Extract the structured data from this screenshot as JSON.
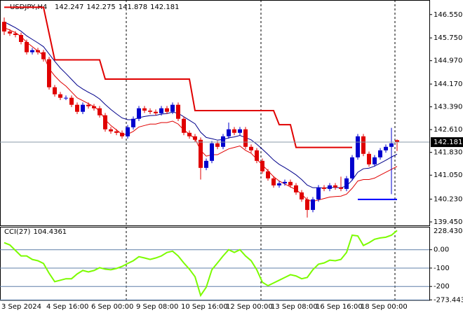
{
  "chart_data": [
    {
      "type": "candlestick",
      "title": "USDJPY,H4",
      "categories": [
        "3 Sep 2024",
        null,
        null,
        null,
        null,
        null,
        null,
        null,
        "4 Sep 16:00",
        null,
        null,
        null,
        null,
        null,
        null,
        null,
        "6 Sep 00:00",
        null,
        null,
        null,
        null,
        null,
        null,
        null,
        "9 Sep 08:00",
        null,
        null,
        null,
        null,
        null,
        null,
        null,
        "10 Sep 16:00",
        null,
        null,
        null,
        null,
        null,
        null,
        null,
        "12 Sep 00:00",
        null,
        null,
        null,
        null,
        null,
        null,
        null,
        "13 Sep 08:00",
        null,
        null,
        null,
        null,
        null,
        null,
        null,
        "16 Sep 16:00",
        null,
        null,
        null,
        null,
        null,
        null,
        null,
        "18 Sep 00:00",
        null,
        null,
        null,
        null,
        null,
        null
      ],
      "open": [
        146.3,
        145.97,
        145.9,
        145.85,
        145.61,
        145.26,
        145.33,
        145.26,
        145.02,
        144.06,
        143.82,
        143.7,
        143.7,
        143.46,
        143.22,
        143.46,
        143.41,
        143.34,
        143.1,
        142.62,
        142.55,
        142.5,
        142.38,
        142.69,
        142.98,
        143.34,
        143.26,
        143.22,
        143.17,
        143.34,
        143.22,
        143.46,
        142.98,
        142.5,
        142.38,
        142.26,
        141.3,
        141.54,
        142.14,
        142.02,
        142.38,
        142.62,
        142.5,
        142.62,
        142.02,
        141.9,
        141.54,
        141.18,
        140.94,
        140.7,
        140.77,
        140.82,
        140.7,
        140.46,
        140.22,
        139.86,
        140.22,
        140.63,
        140.58,
        140.7,
        140.63,
        140.58,
        140.94,
        141.66,
        142.38,
        141.78,
        141.42,
        141.66,
        141.9,
        142.02,
        142.247
      ],
      "high": [
        146.45,
        146.05,
        145.98,
        145.93,
        145.69,
        145.41,
        145.41,
        145.34,
        145.1,
        144.14,
        143.9,
        143.78,
        143.78,
        143.54,
        143.54,
        143.54,
        143.49,
        143.42,
        143.18,
        142.7,
        142.63,
        142.58,
        142.77,
        143.06,
        143.42,
        143.42,
        143.34,
        143.3,
        143.42,
        143.42,
        143.54,
        143.54,
        143.06,
        142.58,
        142.46,
        142.34,
        141.62,
        142.22,
        142.22,
        142.46,
        142.85,
        142.7,
        142.7,
        142.7,
        142.1,
        141.98,
        141.62,
        141.26,
        141.02,
        140.85,
        140.9,
        140.9,
        140.78,
        140.54,
        140.3,
        140.3,
        140.71,
        140.71,
        140.78,
        140.78,
        141.0,
        141.02,
        141.74,
        142.46,
        142.46,
        141.86,
        141.74,
        141.98,
        142.1,
        142.67,
        142.275
      ],
      "low": [
        145.85,
        145.82,
        145.77,
        145.53,
        145.18,
        145.18,
        145.18,
        144.94,
        143.98,
        143.74,
        143.62,
        143.62,
        143.38,
        143.14,
        143.14,
        143.33,
        143.26,
        143.02,
        142.54,
        142.47,
        142.42,
        142.3,
        142.3,
        142.61,
        142.9,
        143.18,
        143.14,
        143.09,
        143.09,
        143.14,
        143.14,
        142.9,
        142.42,
        142.3,
        142.18,
        140.9,
        141.22,
        141.46,
        141.94,
        141.94,
        142.3,
        142.42,
        142.42,
        141.94,
        141.82,
        141.46,
        141.1,
        140.86,
        140.62,
        140.62,
        140.69,
        140.62,
        140.38,
        140.14,
        139.6,
        139.78,
        140.14,
        140.5,
        140.5,
        140.55,
        140.5,
        140.5,
        140.86,
        141.58,
        141.7,
        141.34,
        141.34,
        141.58,
        141.82,
        140.4,
        141.878
      ],
      "close": [
        145.97,
        145.9,
        145.85,
        145.61,
        145.26,
        145.33,
        145.26,
        145.02,
        144.06,
        143.82,
        143.7,
        143.7,
        143.46,
        143.22,
        143.46,
        143.41,
        143.34,
        143.1,
        142.62,
        142.55,
        142.5,
        142.38,
        142.69,
        142.98,
        143.34,
        143.26,
        143.22,
        143.17,
        143.34,
        143.22,
        143.46,
        142.98,
        142.5,
        142.38,
        142.26,
        141.3,
        141.54,
        142.14,
        142.02,
        142.38,
        142.62,
        142.5,
        142.62,
        142.02,
        141.9,
        141.54,
        141.18,
        140.94,
        140.7,
        140.77,
        140.82,
        140.7,
        140.46,
        140.22,
        139.86,
        140.22,
        140.63,
        140.58,
        140.7,
        140.63,
        140.58,
        140.94,
        141.66,
        142.38,
        141.78,
        141.42,
        141.66,
        141.9,
        142.02,
        142.14,
        142.181
      ],
      "bull_color": "#0000cd",
      "bear_color": "#e00000",
      "ma_fast": [
        146.3,
        146.2,
        146.1,
        145.98,
        145.82,
        145.7,
        145.58,
        145.45,
        145.2,
        144.95,
        144.72,
        144.53,
        144.33,
        144.13,
        144.0,
        143.89,
        143.79,
        143.66,
        143.47,
        143.3,
        143.15,
        143.01,
        142.95,
        142.95,
        143.02,
        143.06,
        143.09,
        143.1,
        143.14,
        143.16,
        143.21,
        143.17,
        143.05,
        142.93,
        142.81,
        142.52,
        142.34,
        142.3,
        142.25,
        142.27,
        142.33,
        142.36,
        142.41,
        142.34,
        142.26,
        142.11,
        141.94,
        141.76,
        141.57,
        141.42,
        141.31,
        141.19,
        141.06,
        140.9,
        140.71,
        140.62,
        140.62,
        140.61,
        140.63,
        140.63,
        140.62,
        140.68,
        140.88,
        141.15,
        141.27,
        141.29,
        141.36,
        141.46,
        141.56,
        141.67,
        141.77
      ],
      "ma_fast_color": "#00008b",
      "ma_slow": [
        146.1,
        146.02,
        145.93,
        145.8,
        145.6,
        145.45,
        145.3,
        145.15,
        144.7,
        144.45,
        144.25,
        144.1,
        143.9,
        143.7,
        143.6,
        143.5,
        143.4,
        143.25,
        142.95,
        142.75,
        142.6,
        142.45,
        142.45,
        142.55,
        142.7,
        142.75,
        142.8,
        142.8,
        142.85,
        142.85,
        142.9,
        142.8,
        142.6,
        142.45,
        142.3,
        141.9,
        141.7,
        141.75,
        141.75,
        141.85,
        141.95,
        142.0,
        142.05,
        141.9,
        141.8,
        141.6,
        141.4,
        141.2,
        141.0,
        140.85,
        140.75,
        140.65,
        140.55,
        140.4,
        140.2,
        140.15,
        140.2,
        140.25,
        140.3,
        140.32,
        140.33,
        140.4,
        140.6,
        140.85,
        140.9,
        140.9,
        140.95,
        141.05,
        141.15,
        141.25,
        141.35
      ],
      "ma_slow_color": "#e00000",
      "trail_stop": [
        146.8,
        146.8,
        146.8,
        146.8,
        146.8,
        146.8,
        146.8,
        146.8,
        145.9,
        145.0,
        145.0,
        145.0,
        145.0,
        145.0,
        145.0,
        145.0,
        145.0,
        145.0,
        144.34,
        144.34,
        144.34,
        144.34,
        144.34,
        144.34,
        144.34,
        144.34,
        144.34,
        144.34,
        144.34,
        144.34,
        144.34,
        144.34,
        144.34,
        144.34,
        143.26,
        143.26,
        143.26,
        143.26,
        143.26,
        143.26,
        143.26,
        143.26,
        143.26,
        143.26,
        143.26,
        143.26,
        143.26,
        143.26,
        143.26,
        142.78,
        142.78,
        142.78,
        142.0,
        142.0,
        142.0,
        142.0,
        142.0,
        142.0,
        142.0,
        142.0,
        142.0,
        142.0,
        142.0,
        null,
        null,
        null,
        null,
        null,
        null,
        null,
        null
      ],
      "trail_stop_color": "#e00000",
      "level": [
        null,
        null,
        null,
        null,
        null,
        null,
        null,
        null,
        null,
        null,
        null,
        null,
        null,
        null,
        null,
        null,
        null,
        null,
        null,
        null,
        null,
        null,
        null,
        null,
        null,
        null,
        null,
        null,
        null,
        null,
        null,
        null,
        null,
        null,
        null,
        null,
        null,
        null,
        null,
        null,
        null,
        null,
        null,
        null,
        null,
        null,
        null,
        null,
        null,
        null,
        null,
        null,
        null,
        null,
        null,
        null,
        null,
        null,
        null,
        null,
        null,
        null,
        null,
        140.22,
        140.22,
        140.22,
        140.22,
        140.22,
        140.22,
        140.22,
        140.22
      ],
      "level_color": "#0000ff",
      "ylim": [
        139.33,
        147.0
      ],
      "yticks": [
        {
          "value": 146.55,
          "label": "146.550"
        },
        {
          "value": 145.75,
          "label": "145.750"
        },
        {
          "value": 144.97,
          "label": "144.970"
        },
        {
          "value": 144.17,
          "label": "144.170"
        },
        {
          "value": 143.39,
          "label": "143.390"
        },
        {
          "value": 142.61,
          "label": "142.610"
        },
        {
          "value": 141.83,
          "label": "141.830"
        },
        {
          "value": 141.05,
          "label": "141.050"
        },
        {
          "value": 140.23,
          "label": "140.230"
        },
        {
          "value": 139.45,
          "label": "139.450"
        }
      ]
    },
    {
      "type": "line",
      "title": "CCI(27)",
      "values": [
        38,
        26,
        -4,
        -34,
        -34,
        -53,
        -60,
        -75,
        -128,
        -174,
        -166,
        -158,
        -158,
        -132,
        -113,
        -121,
        -113,
        -98,
        -106,
        -109,
        -102,
        -91,
        -75,
        -60,
        -38,
        -45,
        -53,
        -45,
        -34,
        -15,
        -8,
        -34,
        -72,
        -106,
        -147,
        -249,
        -204,
        -109,
        -72,
        -34,
        0,
        -15,
        0,
        -34,
        -60,
        -109,
        -177,
        -196,
        -181,
        -166,
        -151,
        -136,
        -143,
        -158,
        -151,
        -109,
        -79,
        -72,
        -57,
        -60,
        -53,
        -15,
        79,
        75,
        23,
        38,
        57,
        64,
        68,
        79,
        104.4361
      ],
      "color": "#7cfc00",
      "max_label": "228.4304",
      "ylim": [
        -273.4434,
        117
      ],
      "yticks": [
        {
          "value": 0,
          "label": "0.00"
        },
        -100,
        -200,
        -273.4434
      ],
      "grid_color": "#5f7fa8"
    }
  ]
}
